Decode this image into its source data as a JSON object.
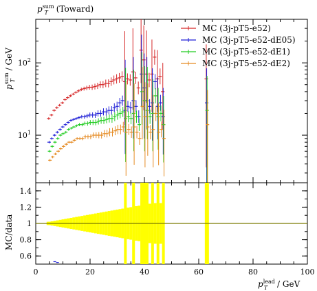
{
  "chart_data": {
    "type": "scatter",
    "title": {
      "base": "p",
      "sup": "sum",
      "sub": "T",
      "rest": " (Toward)"
    },
    "ylabel_main": {
      "base": "p",
      "sup": "sum",
      "sub": "T",
      "rest": " / GeV"
    },
    "xlabel": {
      "base": "p",
      "sup": "lead",
      "sub": "T",
      "rest": " / GeV"
    },
    "ylabel_ratio": "MC/data",
    "xlim": [
      0,
      100
    ],
    "ylim_main": [
      2.2,
      400
    ],
    "yscale_main": "log",
    "ylim_ratio": [
      0.5,
      1.5
    ],
    "x_ticks": [
      0,
      20,
      40,
      60,
      80,
      100
    ],
    "y_ticks_main": [
      {
        "value": 10,
        "base": "10",
        "exp": "1"
      },
      {
        "value": 100,
        "base": "10",
        "exp": "2"
      }
    ],
    "y_ticks_ratio": [
      0.6,
      0.8,
      1,
      1.2,
      1.4
    ],
    "x": [
      5,
      6,
      7,
      8,
      9,
      10,
      11,
      12,
      13,
      14,
      15,
      16,
      17,
      18,
      19,
      20,
      21,
      22,
      23,
      24,
      25,
      26,
      27,
      28,
      29,
      30,
      31,
      32,
      33,
      34,
      35,
      36,
      37,
      38,
      39,
      40,
      41,
      42,
      43,
      44,
      45,
      46,
      47,
      63
    ],
    "series": [
      {
        "name": "MC (3j-pT5-e52)",
        "color": "#d62728",
        "values": [
          17,
          19,
          22,
          24,
          26,
          28,
          31,
          33,
          35,
          37,
          39,
          41,
          43,
          44,
          45,
          46,
          46,
          47,
          48,
          50,
          50,
          52,
          52,
          55,
          58,
          60,
          62,
          65,
          55,
          60,
          58,
          75,
          62,
          45,
          150,
          110,
          70,
          58,
          70,
          120,
          60,
          65,
          40,
          60
        ]
      },
      {
        "name": "MC (3j-pT5-e52-dE05)",
        "color": "#1f1fd6",
        "values": [
          8,
          9,
          10,
          11,
          12,
          13,
          14,
          15,
          16,
          16.5,
          17,
          17.5,
          18,
          18,
          18.5,
          19,
          19,
          19,
          20,
          20,
          21,
          21,
          22,
          22,
          24,
          25,
          28,
          30,
          22,
          25,
          24,
          30,
          25,
          18,
          70,
          45,
          30,
          25,
          28,
          55,
          25,
          28,
          18,
          28
        ]
      },
      {
        "name": "MC (3j-pT5-e52-dE1)",
        "color": "#22cc22",
        "values": [
          6,
          7,
          8,
          9,
          10,
          10.5,
          11,
          12,
          12.5,
          13,
          13.5,
          14,
          14,
          14.5,
          14.5,
          15,
          15,
          15,
          15.5,
          16,
          16,
          16.5,
          17,
          17,
          18,
          19,
          20,
          21,
          17,
          18,
          17,
          20,
          18,
          14,
          40,
          30,
          22,
          18,
          20,
          35,
          18,
          20,
          14,
          22
        ]
      },
      {
        "name": "MC (3j-pT5-e52-dE2)",
        "color": "#e58a22",
        "values": [
          4.5,
          5,
          5.5,
          6,
          6.5,
          7,
          7.5,
          8,
          8,
          8.5,
          9,
          9,
          9,
          9.5,
          9.5,
          9.5,
          10,
          10,
          10,
          10,
          10.5,
          10.5,
          11,
          11,
          11.5,
          12,
          12,
          13,
          11,
          12,
          11,
          13,
          11,
          9,
          25,
          18,
          13,
          11,
          12,
          20,
          11,
          12,
          9,
          14
        ]
      }
    ],
    "legend_placement": "top-right",
    "grid": false
  }
}
